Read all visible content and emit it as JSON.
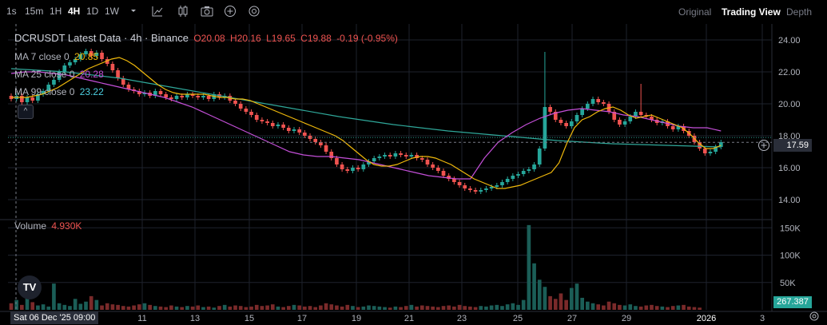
{
  "toolbar": {
    "intervals": [
      "1s",
      "15m",
      "1H",
      "4H",
      "1D",
      "1W"
    ],
    "active_interval": "4H",
    "icons": [
      "chevron-down-icon",
      "line-tool-icon",
      "candles-icon",
      "camera-icon",
      "add-circle-icon",
      "gear-icon"
    ],
    "views": [
      "Original",
      "Trading View",
      "Depth"
    ],
    "active_view": "Trading View"
  },
  "legend": {
    "title": "DCRUSDT Latest Data · 4h · Binance",
    "o_label": "O",
    "o": "20.08",
    "h_label": "H",
    "h": "20.16",
    "l_label": "L",
    "l": "19.65",
    "c_label": "C",
    "c": "19.88",
    "change": "-0.19 (-0.95%)",
    "ma7_label": "MA 7 close 0",
    "ma7": "20.85",
    "ma25_label": "MA 25 close 0",
    "ma25": "20.28",
    "ma99_label": "MA 99 close 0",
    "ma99": "23.22",
    "volume_label": "Volume",
    "volume": "4.930K"
  },
  "colors": {
    "up": "#26a69a",
    "down": "#ef5350",
    "ma7": "#f0b90b",
    "ma25": "#c44fd8",
    "ma99": "#2fa89a"
  },
  "price_axis": [
    "24.00",
    "22.00",
    "20.00",
    "18.00",
    "16.00",
    "14.00"
  ],
  "volume_axis": [
    "150K",
    "100K",
    "50K"
  ],
  "time_axis": [
    "11",
    "13",
    "15",
    "17",
    "19",
    "21",
    "23",
    "25",
    "27",
    "29",
    "2026",
    "3"
  ],
  "current_price": "17.59",
  "current_volume": "267.387",
  "crosshair_date": "Sat 06 Dec '25   09:00",
  "chart_data": {
    "type": "candlestick",
    "ylim": [
      13,
      25
    ],
    "volume_ylim": [
      0,
      165000
    ],
    "closes": [
      20.3,
      20.5,
      20.1,
      20.4,
      20.2,
      20.6,
      20.8,
      21.2,
      21.5,
      22.0,
      22.4,
      22.6,
      22.8,
      23.1,
      23.3,
      23.0,
      23.2,
      22.8,
      22.5,
      22.1,
      21.6,
      21.2,
      20.9,
      20.8,
      20.6,
      20.7,
      20.5,
      20.8,
      20.6,
      20.4,
      20.3,
      20.5,
      20.4,
      20.6,
      20.5,
      20.4,
      20.5,
      20.3,
      20.6,
      20.4,
      20.5,
      20.2,
      20.0,
      19.7,
      19.5,
      19.3,
      19.0,
      18.9,
      18.8,
      18.6,
      18.7,
      18.5,
      18.3,
      18.4,
      18.2,
      18.0,
      17.8,
      17.6,
      17.4,
      17.0,
      16.6,
      16.2,
      15.9,
      15.8,
      16.0,
      15.9,
      16.2,
      16.4,
      16.6,
      16.7,
      16.8,
      16.7,
      16.9,
      16.8,
      16.7,
      16.8,
      16.6,
      16.5,
      16.2,
      16.0,
      15.8,
      15.5,
      15.3,
      15.1,
      14.9,
      14.7,
      14.6,
      14.5,
      14.6,
      14.7,
      14.8,
      14.9,
      15.1,
      15.3,
      15.5,
      15.6,
      15.8,
      15.9,
      16.2,
      17.2,
      19.8,
      19.5,
      19.0,
      18.8,
      18.6,
      18.9,
      19.3,
      19.7,
      20.0,
      20.3,
      20.1,
      20.0,
      19.5,
      19.0,
      18.7,
      18.9,
      19.2,
      19.5,
      19.3,
      19.2,
      19.0,
      18.8,
      18.9,
      18.6,
      18.4,
      18.6,
      18.3,
      18.0,
      17.6,
      17.2,
      16.9,
      17.0,
      17.3,
      17.6
    ],
    "ma7": [
      20.4,
      20.4,
      20.4,
      20.5,
      20.6,
      20.8,
      21.0,
      21.3,
      21.6,
      21.9,
      22.2,
      22.4,
      22.6,
      22.8,
      22.9,
      22.7,
      22.4,
      22.0,
      21.6,
      21.2,
      20.9,
      20.7,
      20.6,
      20.6,
      20.6,
      20.6,
      20.5,
      20.4,
      20.4,
      20.3,
      20.3,
      20.2,
      20.0,
      19.8,
      19.6,
      19.4,
      19.2,
      19.0,
      18.8,
      18.6,
      18.4,
      18.2,
      18.0,
      17.7,
      17.3,
      16.9,
      16.5,
      16.2,
      16.1,
      16.1,
      16.2,
      16.4,
      16.6,
      16.7,
      16.7,
      16.6,
      16.4,
      16.2,
      15.9,
      15.6,
      15.3,
      15.1,
      14.9,
      14.7,
      14.7,
      14.8,
      14.9,
      15.1,
      15.3,
      15.5,
      15.7,
      16.3,
      17.5,
      18.5,
      19.0,
      19.2,
      19.5,
      19.7,
      19.8,
      19.6,
      19.3,
      19.1,
      19.2,
      19.3,
      19.1,
      18.9,
      18.7,
      18.5,
      18.1,
      17.6,
      17.2,
      17.2,
      17.4
    ],
    "ma25": [
      21.9,
      22.0,
      22.0,
      21.9,
      21.8,
      21.6,
      21.4,
      21.2,
      21.0,
      20.8,
      20.6,
      20.4,
      20.1,
      19.8,
      19.4,
      19.0,
      18.6,
      18.2,
      17.8,
      17.4,
      17.0,
      16.8,
      16.7,
      16.7,
      16.6,
      16.5,
      16.3,
      16.1,
      15.9,
      15.7,
      15.5,
      15.4,
      15.3,
      15.3,
      16.6,
      17.6,
      18.2,
      18.7,
      19.1,
      19.4,
      19.6,
      19.7,
      19.6,
      19.5,
      19.3,
      19.2,
      19.0,
      18.8,
      18.6,
      18.5,
      18.5,
      18.3
    ],
    "ma99": [
      22.2,
      22.0,
      21.6,
      21.0,
      20.4,
      19.8,
      19.2,
      18.7,
      18.3,
      18.0,
      17.7,
      17.5,
      17.4,
      17.3
    ],
    "volumes": [
      12000,
      18000,
      9000,
      35000,
      14000,
      8000,
      10000,
      6000,
      48000,
      12000,
      9000,
      7000,
      20000,
      11000,
      15000,
      25000,
      18000,
      8000,
      12000,
      10000,
      9000,
      7000,
      6000,
      8000,
      10000,
      12000,
      9000,
      7000,
      6000,
      5000,
      8000,
      6000,
      5000,
      7000,
      6000,
      8000,
      5000,
      6000,
      4000,
      7000,
      9000,
      6000,
      8000,
      7000,
      5000,
      6000,
      9000,
      7000,
      8000,
      10000,
      6000,
      5000,
      7000,
      9000,
      8000,
      6000,
      7000,
      5000,
      8000,
      12000,
      10000,
      8000,
      6000,
      9000,
      7000,
      5000,
      6000,
      8000,
      7000,
      6000,
      5000,
      4000,
      6000,
      5000,
      7000,
      9000,
      6000,
      8000,
      7000,
      6000,
      5000,
      7000,
      8000,
      6000,
      9000,
      7000,
      6000,
      5000,
      7000,
      6000,
      8000,
      9000,
      7000,
      10000,
      12000,
      9000,
      18000,
      155000,
      85000,
      55000,
      42000,
      25000,
      20000,
      30000,
      18000,
      40000,
      48000,
      22000,
      15000,
      12000,
      10000,
      8000,
      15000,
      12000,
      9000,
      8000,
      10000,
      7000,
      6000,
      8000,
      9000,
      7000,
      6000,
      5000,
      7000,
      8000,
      9000,
      6000,
      5000,
      4000
    ]
  }
}
